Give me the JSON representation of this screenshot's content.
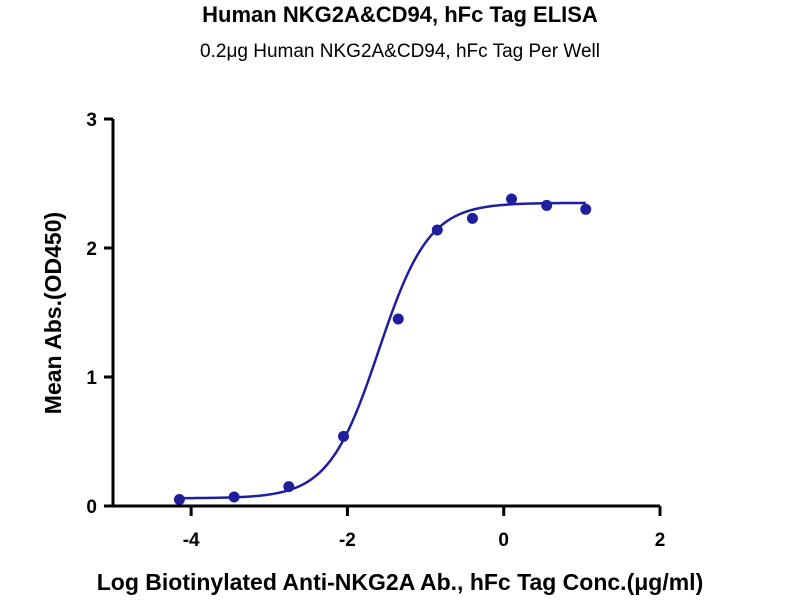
{
  "chart_data": {
    "type": "scatter",
    "title": "Human NKG2A&CD94, hFc Tag ELISA",
    "subtitle": "0.2μg Human NKG2A&CD94, hFc Tag Per Well",
    "xlabel": "Log Biotinylated Anti-NKG2A Ab., hFc Tag Conc.(μg/ml)",
    "ylabel": "Mean Abs.(OD450)",
    "xlim": [
      -5,
      2
    ],
    "ylim": [
      0,
      3
    ],
    "x_ticks": [
      -4,
      -2,
      0,
      2
    ],
    "y_ticks": [
      0,
      1,
      2,
      3
    ],
    "grid": false,
    "legend": "none",
    "colors": {
      "series": "#1f1f9e",
      "axis": "#000000"
    },
    "series": [
      {
        "x": [
          -4.15,
          -3.45,
          -2.75,
          -2.05,
          -1.35,
          -0.85,
          -0.4,
          0.1,
          0.55,
          1.05
        ],
        "y": [
          0.05,
          0.07,
          0.15,
          0.54,
          1.45,
          2.14,
          2.23,
          2.38,
          2.33,
          2.3
        ]
      }
    ],
    "fit": {
      "model": "4PL",
      "bottom": 0.06,
      "top": 2.35,
      "logEC50": -1.6,
      "hill": 1.35,
      "x_range": [
        -4.15,
        1.05
      ]
    }
  }
}
